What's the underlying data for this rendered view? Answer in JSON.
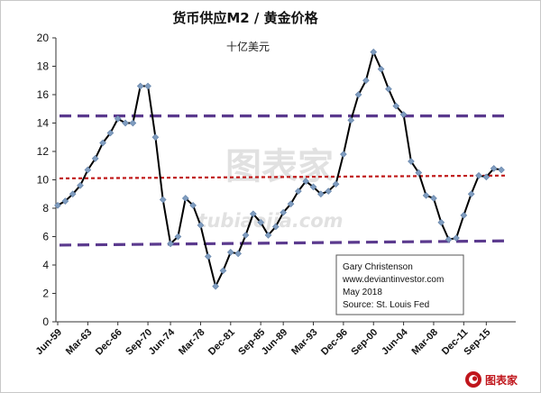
{
  "chart_data": {
    "type": "line",
    "title": "货币供应M2 / 黄金价格",
    "subtitle": "十亿美元",
    "ylim": [
      0,
      20
    ],
    "y_ticks": [
      "0",
      "2",
      "4",
      "6",
      "8",
      "10",
      "12",
      "14",
      "16",
      "18",
      "20"
    ],
    "x_tick_labels": [
      "Jun-59",
      "Mar-63",
      "Dec-66",
      "Sep-70",
      "Jun-74",
      "Mar-78",
      "Dec-81",
      "Sep-85",
      "Jun-89",
      "Mar-93",
      "Dec-96",
      "Sep-00",
      "Jun-04",
      "Mar-08",
      "Dec-11",
      "Sep-15"
    ],
    "series": [
      {
        "color": "#000000",
        "marker_color": "#7f9cbf",
        "points": [
          [
            "Jun-59",
            8.2
          ],
          [
            "1960",
            8.5
          ],
          [
            "1961",
            9.0
          ],
          [
            "1962",
            9.6
          ],
          [
            "Mar-63",
            10.7
          ],
          [
            "1964",
            11.5
          ],
          [
            "1965",
            12.6
          ],
          [
            "1966",
            13.3
          ],
          [
            "Dec-66",
            14.3
          ],
          [
            "1968",
            14.0
          ],
          [
            "1969",
            14.0
          ],
          [
            "1970",
            16.6
          ],
          [
            "Sep-70",
            16.6
          ],
          [
            "1971",
            13.0
          ],
          [
            "1972",
            8.6
          ],
          [
            "Jun-74",
            5.5
          ],
          [
            "1975",
            6.0
          ],
          [
            "1976",
            8.7
          ],
          [
            "1977",
            8.2
          ],
          [
            "Mar-78",
            6.8
          ],
          [
            "1979",
            4.6
          ],
          [
            "1980",
            2.5
          ],
          [
            "1981",
            3.6
          ],
          [
            "Dec-81",
            4.9
          ],
          [
            "1983",
            4.8
          ],
          [
            "1984",
            6.1
          ],
          [
            "1985",
            7.6
          ],
          [
            "Sep-85",
            7.0
          ],
          [
            "1987",
            6.1
          ],
          [
            "1988",
            6.7
          ],
          [
            "Jun-89",
            7.7
          ],
          [
            "1990",
            8.3
          ],
          [
            "1991",
            9.2
          ],
          [
            "1992",
            9.9
          ],
          [
            "Mar-93",
            9.5
          ],
          [
            "1994",
            9.0
          ],
          [
            "1995",
            9.2
          ],
          [
            "1996",
            9.7
          ],
          [
            "Dec-96",
            11.8
          ],
          [
            "1998",
            14.2
          ],
          [
            "1999",
            16.0
          ],
          [
            "2000",
            17.0
          ],
          [
            "Sep-00",
            19.0
          ],
          [
            "2001",
            17.8
          ],
          [
            "2002",
            16.4
          ],
          [
            "2003",
            15.2
          ],
          [
            "Jun-04",
            14.6
          ],
          [
            "2005",
            11.3
          ],
          [
            "2006",
            10.5
          ],
          [
            "2007",
            8.9
          ],
          [
            "Mar-08",
            8.7
          ],
          [
            "2009",
            7.0
          ],
          [
            "2010",
            5.8
          ],
          [
            "2011",
            5.9
          ],
          [
            "Dec-11",
            7.5
          ],
          [
            "2013",
            9.0
          ],
          [
            "2014",
            10.3
          ],
          [
            "Sep-15",
            10.2
          ],
          [
            "2016",
            10.8
          ],
          [
            "2017",
            10.7
          ]
        ]
      }
    ],
    "reference_lines": [
      {
        "style": "dashed",
        "color": "#5b3a8e",
        "y_start": 14.5,
        "y_end": 14.5
      },
      {
        "style": "dashed",
        "color": "#c01818",
        "y_start": 10.1,
        "y_end": 10.3
      },
      {
        "style": "dashed",
        "color": "#5b3a8e",
        "y_start": 5.4,
        "y_end": 5.7
      }
    ],
    "annotation": [
      "Gary Christenson",
      "www.deviantinvestor.com",
      "May 2018",
      "Source: St. Louis Fed"
    ],
    "grid": false,
    "legend": "none"
  },
  "watermark": {
    "text_cn": "图表家",
    "text_en": "tubiaojia.com"
  },
  "logo": {
    "text": "图表家",
    "icon": "red-swirl-logo"
  }
}
